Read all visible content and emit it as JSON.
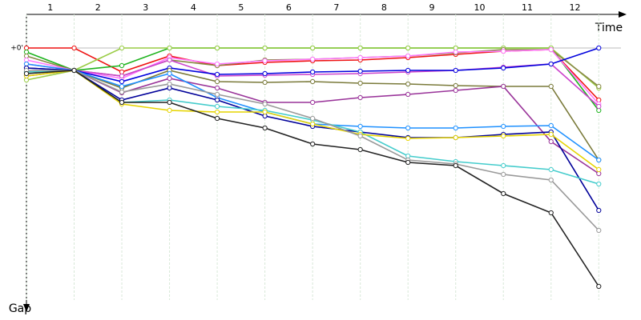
{
  "chart_data": {
    "type": "line",
    "x_axis_label": "Time",
    "y_axis_label": "Gap",
    "lap_labels": [
      "1",
      "2",
      "3",
      "4",
      "5",
      "6",
      "7",
      "8",
      "9",
      "10",
      "11",
      "12"
    ],
    "x": [
      0,
      1,
      2,
      3,
      4,
      5,
      6,
      7,
      8,
      9,
      10,
      11,
      12
    ],
    "xlim": [
      0,
      12.6
    ],
    "ylim": [
      -4.2,
      31.5
    ],
    "yticks": [
      {
        "value": 0,
        "label": "+0'"
      }
    ],
    "grid": true,
    "series": [
      {
        "color": "#ee1111",
        "values": [
          0,
          0,
          3,
          1,
          2.2,
          1.8,
          1.6,
          1.5,
          1.2,
          0.8,
          0.4,
          0.2,
          6.5
        ]
      },
      {
        "color": "#1db31d",
        "values": [
          0.5,
          2.8,
          2.2,
          0,
          0,
          0,
          0,
          0,
          0,
          0,
          0,
          0,
          7.8
        ]
      },
      {
        "color": "#99cc44",
        "values": [
          4,
          2.8,
          0,
          0,
          0,
          0,
          0,
          0,
          0,
          0,
          0,
          0,
          5
        ]
      },
      {
        "color": "#888844",
        "values": [
          1,
          2.8,
          3.5,
          1.5,
          2.2,
          1.5,
          1.4,
          1.2,
          1,
          0.6,
          0.2,
          0.2,
          4.8
        ]
      },
      {
        "color": "#ff77ff",
        "values": [
          1.5,
          2.8,
          3.8,
          1.2,
          2,
          1.6,
          1.4,
          1.2,
          1,
          0.5,
          0.4,
          0.2,
          7
        ]
      },
      {
        "color": "#cc44cc",
        "values": [
          2,
          2.8,
          3.5,
          1.5,
          3.5,
          3.4,
          3.3,
          3.2,
          3,
          2.8,
          2.4,
          2,
          7.3
        ]
      },
      {
        "color": "#0000dd",
        "values": [
          2.5,
          2.8,
          4.2,
          2.5,
          3.3,
          3.2,
          3,
          2.9,
          2.8,
          2.8,
          2.5,
          2,
          0
        ]
      },
      {
        "color": "#7a7a3a",
        "values": [
          3,
          2.8,
          5,
          2.8,
          4.2,
          4.3,
          4.2,
          4.4,
          4.5,
          4.7,
          4.8,
          4.8,
          14
        ]
      },
      {
        "color": "#993399",
        "values": [
          3.5,
          2.8,
          5.6,
          3.8,
          5,
          6.8,
          6.8,
          6.2,
          5.8,
          5.3,
          4.8,
          11.7,
          15.7
        ]
      },
      {
        "color": "#1e90ff",
        "values": [
          2,
          2.8,
          4.8,
          3.2,
          6.2,
          8,
          9.5,
          9.8,
          10,
          10,
          9.8,
          9.7,
          14
        ]
      },
      {
        "color": "#000099",
        "values": [
          2.5,
          2.8,
          6.5,
          5,
          6.5,
          8.5,
          9.8,
          10.5,
          11.2,
          11.2,
          10.8,
          10.5,
          20.3
        ]
      },
      {
        "color": "#44cccc",
        "values": [
          3,
          2.8,
          6.8,
          6.5,
          7.3,
          7.8,
          9,
          10.5,
          13.5,
          14.2,
          14.7,
          15.2,
          17
        ]
      },
      {
        "color": "#e6d400",
        "values": [
          3.5,
          2.8,
          7,
          7.8,
          8,
          8,
          9.5,
          10.8,
          11.3,
          11.2,
          11,
          10.8,
          15.2
        ]
      },
      {
        "color": "#999999",
        "values": [
          2.8,
          2.8,
          5.5,
          4.5,
          5.8,
          7,
          8.8,
          11,
          14,
          14.5,
          15.8,
          16.5,
          22.8
        ]
      },
      {
        "color": "#222222",
        "values": [
          3.2,
          2.8,
          6.8,
          6.8,
          8.8,
          10,
          12,
          12.7,
          14.3,
          14.7,
          18.2,
          20.6,
          29.8
        ]
      }
    ]
  }
}
